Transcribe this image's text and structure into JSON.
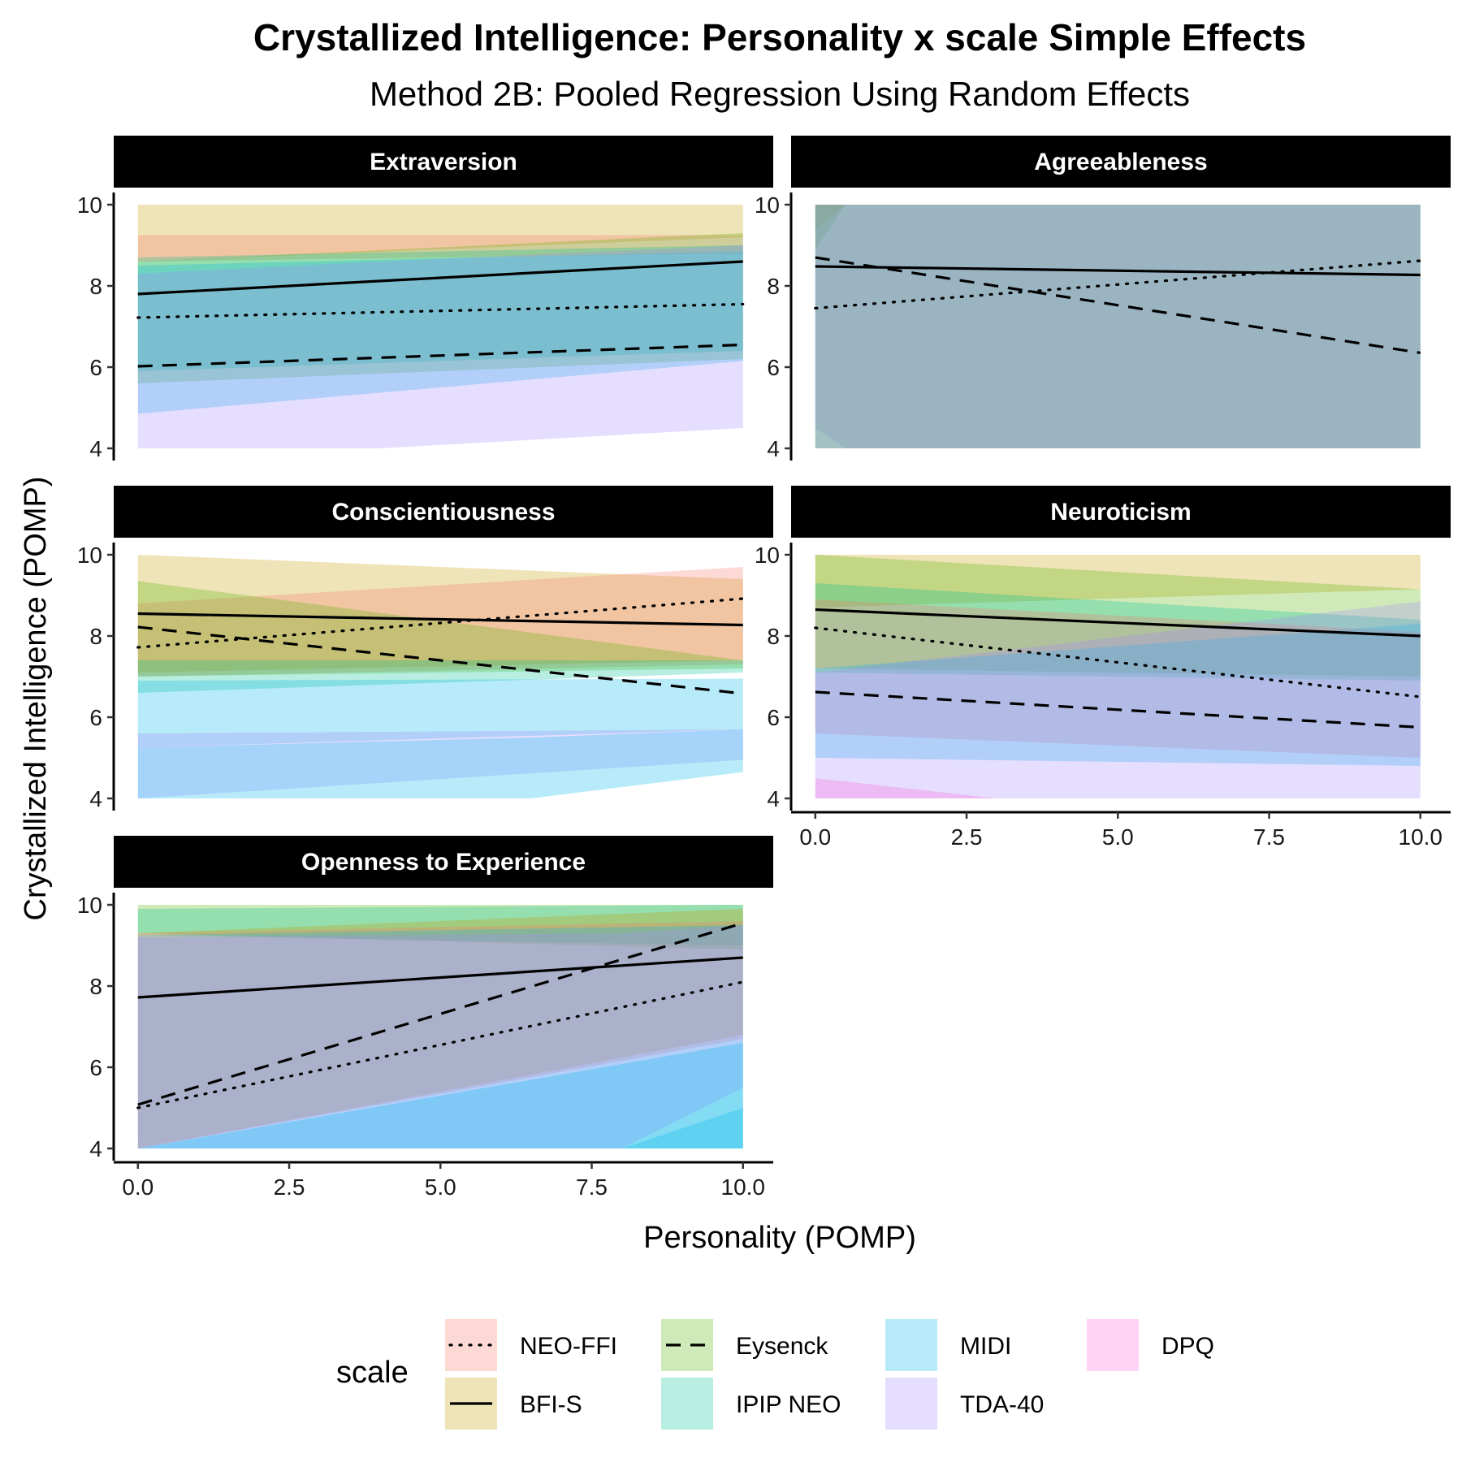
{
  "chart_data": {
    "type": "line",
    "title": "Crystallized Intelligence: Personality x scale Simple Effects",
    "subtitle": "Method 2B: Pooled Regression Using Random Effects",
    "xlabel": "Personality (POMP)",
    "ylabel": "Crystallized Intelligence (POMP)",
    "xlim": [
      -0.4,
      10.5
    ],
    "ylim": [
      3.7,
      10.3
    ],
    "x_ticks": [
      "0.0",
      "2.5",
      "5.0",
      "7.5",
      "10.0"
    ],
    "y_ticks": [
      "4",
      "6",
      "8",
      "10"
    ],
    "grid": false,
    "legend_title": "scale",
    "legend_position": "bottom",
    "legend": [
      {
        "name": "NEO-FFI",
        "color": "#F8766D",
        "linetype": "dotted"
      },
      {
        "name": "BFI-S",
        "color": "#C49A00",
        "linetype": "solid"
      },
      {
        "name": "Eysenck",
        "color": "#53B400",
        "linetype": "dashed"
      },
      {
        "name": "IPIP NEO",
        "color": "#00C094",
        "linetype": null
      },
      {
        "name": "MIDI",
        "color": "#00B6EB",
        "linetype": null
      },
      {
        "name": "TDA-40",
        "color": "#A58AFF",
        "linetype": null
      },
      {
        "name": "DPQ",
        "color": "#FB61D7",
        "linetype": null
      }
    ],
    "panels": [
      {
        "name": "Extraversion",
        "lines": {
          "NEO-FFI": [
            [
              0,
              7.22
            ],
            [
              10,
              7.55
            ]
          ],
          "BFI-S": [
            [
              0,
              7.8
            ],
            [
              10,
              8.6
            ]
          ],
          "Eysenck": [
            [
              0,
              6.02
            ],
            [
              10,
              6.55
            ]
          ]
        },
        "ribbons": [
          {
            "scale": "BFI-S",
            "x": [
              0,
              10
            ],
            "lower": [
              8.6,
              9.2
            ],
            "upper": [
              10,
              10
            ]
          },
          {
            "scale": "NEO-FFI",
            "x": [
              0,
              10
            ],
            "lower": [
              8.6,
              8.8
            ],
            "upper": [
              9.25,
              9.25
            ]
          },
          {
            "scale": "Eysenck",
            "x": [
              0,
              10
            ],
            "lower": [
              5.6,
              6.2
            ],
            "upper": [
              8.6,
              9.3
            ]
          },
          {
            "scale": "IPIP NEO",
            "x": [
              0,
              10
            ],
            "lower": [
              5.9,
              6.4
            ],
            "upper": [
              8.7,
              9.0
            ]
          },
          {
            "scale": "MIDI",
            "x": [
              0,
              10
            ],
            "lower": [
              4.85,
              6.15
            ],
            "upper": [
              8.5,
              8.85
            ]
          },
          {
            "scale": "TDA-40",
            "x": [
              0,
              4,
              10
            ],
            "lower": [
              4.0,
              4.0,
              4.5
            ],
            "upper": [
              8.3,
              8.6,
              9.0
            ]
          }
        ]
      },
      {
        "name": "Agreeableness",
        "lines": {
          "NEO-FFI": [
            [
              0,
              7.45
            ],
            [
              10,
              8.62
            ]
          ],
          "BFI-S": [
            [
              0,
              8.48
            ],
            [
              10,
              8.27
            ]
          ],
          "Eysenck": [
            [
              0,
              8.7
            ],
            [
              10,
              6.35
            ]
          ]
        },
        "ribbons": [
          {
            "scale": "BFI-S",
            "x": [
              0,
              0.5,
              10
            ],
            "lower": [
              9.4,
              10,
              10
            ],
            "upper": [
              10,
              10,
              10
            ]
          },
          {
            "scale": "Eysenck",
            "x": [
              0,
              0.5,
              10
            ],
            "lower": [
              8.9,
              10,
              10
            ],
            "upper": [
              10,
              10,
              10
            ]
          },
          {
            "scale": "TDA-40",
            "x": [
              0,
              0.5,
              10
            ],
            "lower": [
              4.5,
              4.0,
              4.0
            ],
            "upper": [
              10,
              10,
              10
            ]
          },
          {
            "scale": "IPIP NEO",
            "x": [
              0,
              10
            ],
            "lower": [
              4.0,
              4.0
            ],
            "upper": [
              10,
              10
            ]
          },
          {
            "scale": "MIDI",
            "x": [
              0,
              10
            ],
            "lower": [
              4.0,
              4.0
            ],
            "upper": [
              10,
              10
            ]
          },
          {
            "scale": "NEO-FFI",
            "x": [
              0,
              10
            ],
            "lower": [
              4.0,
              4.0
            ],
            "upper": [
              10,
              10
            ]
          }
        ]
      },
      {
        "name": "Conscientiousness",
        "lines": {
          "NEO-FFI": [
            [
              0,
              7.72
            ],
            [
              10,
              8.92
            ]
          ],
          "BFI-S": [
            [
              0,
              8.55
            ],
            [
              10,
              8.27
            ]
          ],
          "Eysenck": [
            [
              0,
              8.22
            ],
            [
              10,
              6.58
            ]
          ]
        },
        "ribbons": [
          {
            "scale": "BFI-S",
            "x": [
              0,
              10
            ],
            "lower": [
              7.1,
              7.4
            ],
            "upper": [
              10,
              9.4
            ]
          },
          {
            "scale": "NEO-FFI",
            "x": [
              0,
              10
            ],
            "lower": [
              7.0,
              7.3
            ],
            "upper": [
              8.8,
              9.7
            ]
          },
          {
            "scale": "Eysenck",
            "x": [
              0,
              10
            ],
            "lower": [
              7.0,
              7.2
            ],
            "upper": [
              9.35,
              7.4
            ]
          },
          {
            "scale": "IPIP NEO",
            "x": [
              0,
              10
            ],
            "lower": [
              6.6,
              7.1
            ],
            "upper": [
              7.4,
              7.4
            ]
          },
          {
            "scale": "MIDI",
            "x": [
              0,
              10
            ],
            "lower": [
              5.25,
              5.7
            ],
            "upper": [
              6.9,
              6.95
            ]
          },
          {
            "scale": "TDA-40",
            "x": [
              0,
              10
            ],
            "lower": [
              4.0,
              4.95
            ],
            "upper": [
              5.6,
              5.7
            ]
          },
          {
            "scale": "MIDI",
            "x": [
              0,
              6.5,
              10
            ],
            "lower": [
              4.0,
              4.0,
              4.65
            ],
            "upper": [
              5.25,
              5.5,
              5.7
            ]
          }
        ]
      },
      {
        "name": "Neuroticism",
        "lines": {
          "NEO-FFI": [
            [
              0,
              8.2
            ],
            [
              10,
              6.5
            ]
          ],
          "BFI-S": [
            [
              0,
              8.65
            ],
            [
              10,
              8.0
            ]
          ],
          "Eysenck": [
            [
              0,
              6.62
            ],
            [
              10,
              5.75
            ]
          ]
        },
        "ribbons": [
          {
            "scale": "BFI-S",
            "x": [
              0,
              10
            ],
            "lower": [
              8.7,
              9.15
            ],
            "upper": [
              10,
              10
            ]
          },
          {
            "scale": "Eysenck",
            "x": [
              0,
              10
            ],
            "lower": [
              7.2,
              7.0
            ],
            "upper": [
              10,
              9.15
            ]
          },
          {
            "scale": "IPIP NEO",
            "x": [
              0,
              10
            ],
            "lower": [
              7.1,
              6.9
            ],
            "upper": [
              9.3,
              8.4
            ]
          },
          {
            "scale": "NEO-FFI",
            "x": [
              0,
              10
            ],
            "lower": [
              5.6,
              5.0
            ],
            "upper": [
              8.9,
              8.1
            ]
          },
          {
            "scale": "MIDI",
            "x": [
              0,
              10
            ],
            "lower": [
              5.0,
              4.8
            ],
            "upper": [
              7.2,
              8.3
            ]
          },
          {
            "scale": "TDA-40",
            "x": [
              0,
              10
            ],
            "lower": [
              4.0,
              4.0
            ],
            "upper": [
              7.1,
              8.85
            ]
          },
          {
            "scale": "DPQ",
            "x": [
              0,
              3,
              10
            ],
            "lower": [
              4.0,
              4.0,
              4.0
            ],
            "upper": [
              4.5,
              4.0,
              4.0
            ]
          }
        ]
      },
      {
        "name": "Openness to Experience",
        "lines": {
          "NEO-FFI": [
            [
              0,
              5.0
            ],
            [
              10,
              8.1
            ]
          ],
          "BFI-S": [
            [
              0,
              7.72
            ],
            [
              10,
              8.7
            ]
          ],
          "Eysenck": [
            [
              0,
              5.08
            ],
            [
              10,
              9.55
            ]
          ]
        },
        "ribbons": [
          {
            "scale": "Eysenck",
            "x": [
              0,
              10
            ],
            "lower": [
              9.3,
              8.9
            ],
            "upper": [
              10,
              10
            ]
          },
          {
            "scale": "IPIP NEO",
            "x": [
              0,
              10
            ],
            "lower": [
              9.25,
              9.0
            ],
            "upper": [
              9.9,
              10
            ]
          },
          {
            "scale": "BFI-S",
            "x": [
              0,
              10
            ],
            "lower": [
              4.0,
              6.8
            ],
            "upper": [
              9.3,
              9.9
            ]
          },
          {
            "scale": "NEO-FFI",
            "x": [
              0,
              10
            ],
            "lower": [
              4.0,
              6.7
            ],
            "upper": [
              9.3,
              9.6
            ]
          },
          {
            "scale": "MIDI",
            "x": [
              0,
              10
            ],
            "lower": [
              4.0,
              4.0
            ],
            "upper": [
              9.25,
              9.5
            ]
          },
          {
            "scale": "TDA-40",
            "x": [
              0,
              8,
              10
            ],
            "lower": [
              4.0,
              4.0,
              5.5
            ],
            "upper": [
              9.2,
              9.3,
              9.5
            ]
          },
          {
            "scale": "MIDI",
            "x": [
              0,
              5,
              10
            ],
            "lower": [
              4.0,
              4.0,
              4.0
            ],
            "upper": [
              4.0,
              5.3,
              6.6
            ]
          },
          {
            "scale": "MIDI",
            "x": [
              0,
              8,
              10
            ],
            "lower": [
              4.0,
              4.0,
              4.0
            ],
            "upper": [
              4.0,
              4.0,
              5.0
            ]
          }
        ]
      }
    ]
  }
}
